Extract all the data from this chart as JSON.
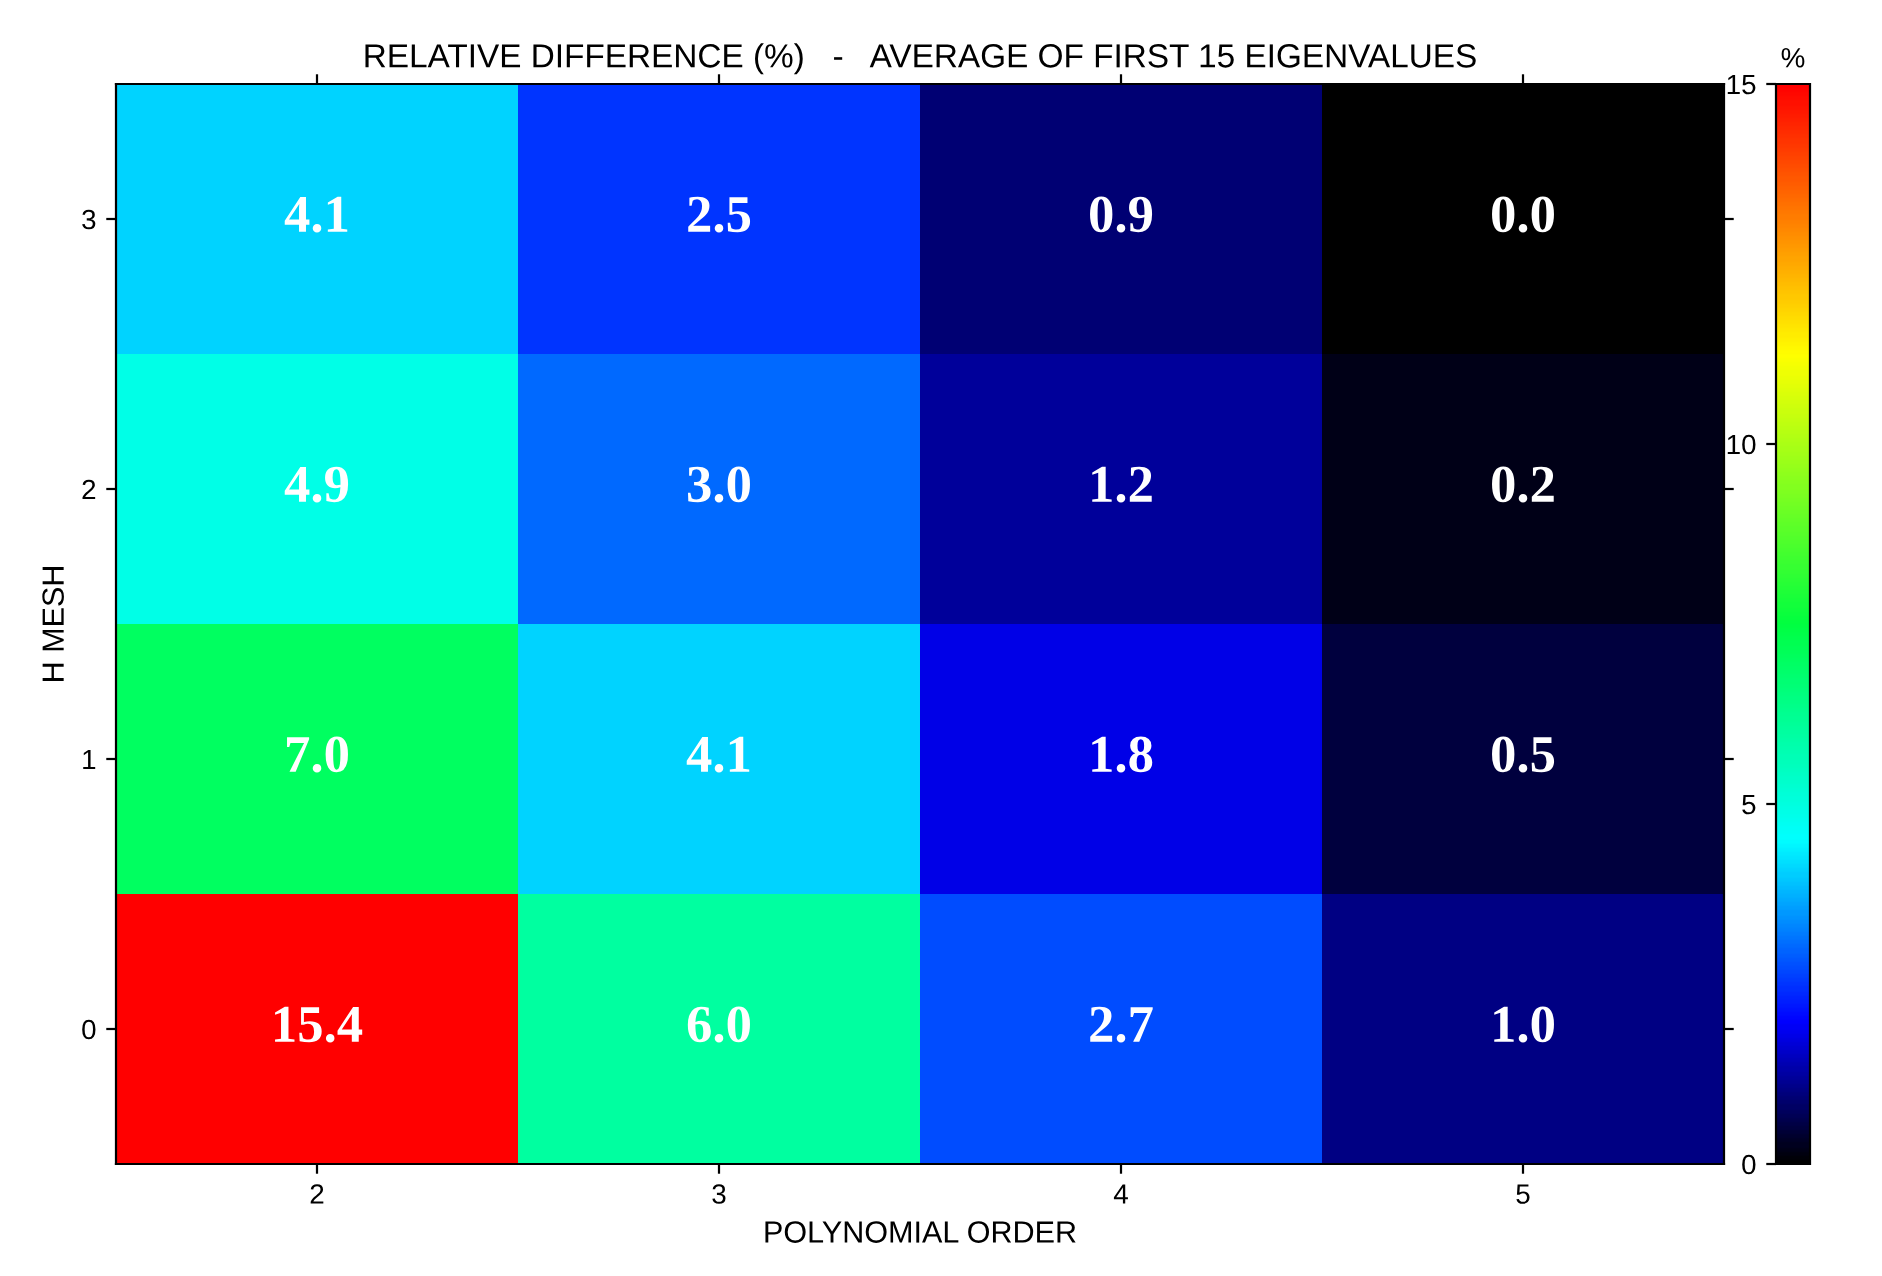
{
  "chart_data": {
    "type": "heatmap",
    "title": "RELATIVE DIFFERENCE (%)   -   AVERAGE OF FIRST 15 EIGENVALUES",
    "xlabel": "POLYNOMIAL ORDER",
    "ylabel": "H MESH",
    "clabel": "%",
    "categories": [
      "2",
      "3",
      "4",
      "5"
    ],
    "y_categories": [
      "3",
      "2",
      "1",
      "0"
    ],
    "cells": [
      [
        4.1,
        2.5,
        0.9,
        0.0
      ],
      [
        4.9,
        3.0,
        1.2,
        0.2
      ],
      [
        7.0,
        4.1,
        1.8,
        0.5
      ],
      [
        15.4,
        6.0,
        2.7,
        1.0
      ]
    ],
    "cell_labels": [
      [
        "4.1",
        "2.5",
        "0.9",
        "0.0"
      ],
      [
        "4.9",
        "3.0",
        "1.2",
        "0.2"
      ],
      [
        "7.0",
        "4.1",
        "1.8",
        "0.5"
      ],
      [
        "15.4",
        "6.0",
        "2.7",
        "1.0"
      ]
    ],
    "clim": [
      0,
      15
    ],
    "cticks": [
      0,
      5,
      10,
      15
    ],
    "data_labels": true
  }
}
